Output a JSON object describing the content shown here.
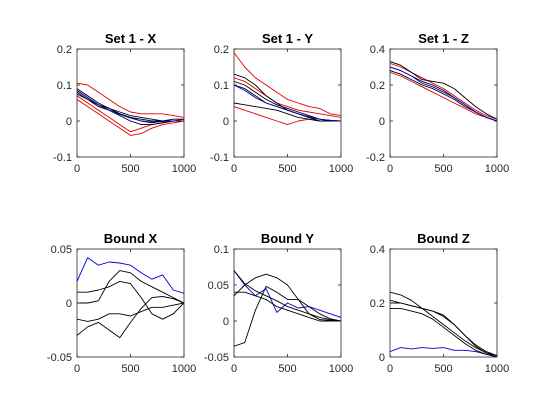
{
  "colors": {
    "black": "#000000",
    "red": "#e00000",
    "blue": "#0000e0",
    "axis": "#262626"
  },
  "chart_data": [
    {
      "type": "line",
      "title": "Set 1 - X",
      "xlim": [
        0,
        1000
      ],
      "ylim": [
        -0.1,
        0.2
      ],
      "xticks": [
        0,
        500,
        1000
      ],
      "yticks": [
        -0.1,
        0,
        0.1,
        0.2
      ],
      "xtick_labels": [
        "0",
        "500",
        "1000"
      ],
      "ytick_labels": [
        "-0.1",
        "0",
        "0.1",
        "0.2"
      ],
      "x": [
        0,
        100,
        200,
        300,
        400,
        500,
        600,
        700,
        800,
        900,
        1000
      ],
      "series": [
        {
          "color": "red",
          "values": [
            0.105,
            0.1,
            0.08,
            0.06,
            0.04,
            0.025,
            0.02,
            0.02,
            0.02,
            0.015,
            0.01
          ]
        },
        {
          "color": "red",
          "values": [
            0.06,
            0.04,
            0.02,
            0.0,
            -0.02,
            -0.04,
            -0.035,
            -0.02,
            -0.01,
            -0.005,
            0.0
          ]
        },
        {
          "color": "red",
          "values": [
            0.07,
            0.05,
            0.03,
            0.01,
            -0.01,
            -0.03,
            -0.02,
            -0.01,
            -0.005,
            0.0,
            0.005
          ]
        },
        {
          "color": "black",
          "values": [
            0.09,
            0.07,
            0.05,
            0.035,
            0.02,
            0.01,
            0.0,
            -0.005,
            0.0,
            0.005,
            0.005
          ]
        },
        {
          "color": "black",
          "values": [
            0.085,
            0.065,
            0.045,
            0.03,
            0.015,
            0.0,
            -0.01,
            -0.01,
            -0.005,
            0.0,
            0.0
          ]
        },
        {
          "color": "black",
          "values": [
            0.08,
            0.06,
            0.04,
            0.03,
            0.02,
            0.01,
            0.005,
            0.0,
            0.0,
            0.0,
            0.0
          ]
        },
        {
          "color": "black",
          "values": [
            0.075,
            0.06,
            0.045,
            0.035,
            0.025,
            0.015,
            0.01,
            0.005,
            0.0,
            0.0,
            0.0
          ]
        },
        {
          "color": "blue",
          "values": [
            0.085,
            0.065,
            0.045,
            0.03,
            0.018,
            0.008,
            0.0,
            -0.003,
            -0.002,
            0.0,
            0.0
          ]
        }
      ]
    },
    {
      "type": "line",
      "title": "Set 1 - Y",
      "xlim": [
        0,
        1000
      ],
      "ylim": [
        -0.1,
        0.2
      ],
      "xticks": [
        0,
        500,
        1000
      ],
      "yticks": [
        -0.1,
        0,
        0.1,
        0.2
      ],
      "xtick_labels": [
        "0",
        "500",
        "1000"
      ],
      "ytick_labels": [
        "-0.1",
        "0",
        "0.1",
        "0.2"
      ],
      "x": [
        0,
        100,
        200,
        300,
        400,
        500,
        600,
        700,
        800,
        900,
        1000
      ],
      "series": [
        {
          "color": "red",
          "values": [
            0.19,
            0.15,
            0.12,
            0.1,
            0.08,
            0.06,
            0.05,
            0.04,
            0.035,
            0.02,
            0.015
          ]
        },
        {
          "color": "red",
          "values": [
            0.12,
            0.11,
            0.09,
            0.07,
            0.05,
            0.04,
            0.03,
            0.025,
            0.02,
            0.015,
            0.01
          ]
        },
        {
          "color": "red",
          "values": [
            0.04,
            0.03,
            0.02,
            0.01,
            0.0,
            -0.01,
            0.0,
            0.005,
            0.0,
            0.0,
            0.0
          ]
        },
        {
          "color": "black",
          "values": [
            0.13,
            0.12,
            0.1,
            0.07,
            0.05,
            0.03,
            0.02,
            0.01,
            0.005,
            0.0,
            0.0
          ]
        },
        {
          "color": "black",
          "values": [
            0.1,
            0.09,
            0.07,
            0.05,
            0.04,
            0.03,
            0.02,
            0.01,
            0.0,
            0.0,
            0.0
          ]
        },
        {
          "color": "black",
          "values": [
            0.05,
            0.045,
            0.04,
            0.035,
            0.03,
            0.02,
            0.01,
            0.005,
            0.0,
            0.0,
            0.0
          ]
        },
        {
          "color": "black",
          "values": [
            0.11,
            0.1,
            0.08,
            0.06,
            0.045,
            0.035,
            0.025,
            0.015,
            0.005,
            0.002,
            0.0
          ]
        },
        {
          "color": "blue",
          "values": [
            0.1,
            0.085,
            0.065,
            0.05,
            0.04,
            0.03,
            0.02,
            0.012,
            0.005,
            0.002,
            0.0
          ]
        }
      ]
    },
    {
      "type": "line",
      "title": "Set 1 - Z",
      "xlim": [
        0,
        1000
      ],
      "ylim": [
        -0.2,
        0.4
      ],
      "xticks": [
        0,
        500,
        1000
      ],
      "yticks": [
        -0.2,
        0,
        0.2,
        0.4
      ],
      "xtick_labels": [
        "0",
        "500",
        "1000"
      ],
      "ytick_labels": [
        "-0.2",
        "0",
        "0.2",
        "0.4"
      ],
      "x": [
        0,
        100,
        200,
        300,
        400,
        500,
        600,
        700,
        800,
        900,
        1000
      ],
      "series": [
        {
          "color": "red",
          "values": [
            0.32,
            0.3,
            0.27,
            0.24,
            0.21,
            0.18,
            0.14,
            0.1,
            0.06,
            0.03,
            0.01
          ]
        },
        {
          "color": "red",
          "values": [
            0.27,
            0.25,
            0.22,
            0.19,
            0.16,
            0.13,
            0.1,
            0.07,
            0.04,
            0.02,
            0.0
          ]
        },
        {
          "color": "black",
          "values": [
            0.33,
            0.31,
            0.27,
            0.23,
            0.22,
            0.21,
            0.18,
            0.13,
            0.08,
            0.04,
            0.01
          ]
        },
        {
          "color": "black",
          "values": [
            0.3,
            0.28,
            0.25,
            0.22,
            0.2,
            0.17,
            0.13,
            0.09,
            0.05,
            0.02,
            0.0
          ]
        },
        {
          "color": "black",
          "values": [
            0.28,
            0.26,
            0.23,
            0.2,
            0.18,
            0.15,
            0.12,
            0.08,
            0.05,
            0.02,
            0.0
          ]
        },
        {
          "color": "blue",
          "values": [
            0.3,
            0.28,
            0.25,
            0.21,
            0.19,
            0.16,
            0.13,
            0.09,
            0.05,
            0.02,
            0.0
          ]
        }
      ]
    },
    {
      "type": "line",
      "title": "Bound X",
      "xlim": [
        0,
        1000
      ],
      "ylim": [
        -0.05,
        0.05
      ],
      "xticks": [
        0,
        500,
        1000
      ],
      "yticks": [
        -0.05,
        0,
        0.05
      ],
      "xtick_labels": [
        "0",
        "500",
        "1000"
      ],
      "ytick_labels": [
        "-0.05",
        "0",
        "0.05"
      ],
      "x": [
        0,
        100,
        200,
        300,
        400,
        500,
        600,
        700,
        800,
        900,
        1000
      ],
      "series": [
        {
          "color": "blue",
          "values": [
            0.02,
            0.042,
            0.035,
            0.038,
            0.037,
            0.035,
            0.028,
            0.022,
            0.026,
            0.012,
            0.009
          ]
        },
        {
          "color": "black",
          "values": [
            0.0,
            0.0,
            0.002,
            0.02,
            0.03,
            0.028,
            0.02,
            0.015,
            0.01,
            0.005,
            0.0
          ]
        },
        {
          "color": "black",
          "values": [
            0.01,
            0.01,
            0.012,
            0.015,
            0.02,
            0.018,
            0.005,
            -0.01,
            -0.015,
            -0.01,
            0.0
          ]
        },
        {
          "color": "black",
          "values": [
            -0.015,
            -0.017,
            -0.015,
            -0.01,
            -0.01,
            -0.012,
            -0.008,
            -0.004,
            -0.004,
            -0.002,
            0.0
          ]
        },
        {
          "color": "black",
          "values": [
            -0.03,
            -0.022,
            -0.018,
            -0.025,
            -0.032,
            -0.018,
            -0.005,
            0.005,
            0.006,
            0.004,
            0.0
          ]
        }
      ]
    },
    {
      "type": "line",
      "title": "Bound Y",
      "xlim": [
        0,
        1000
      ],
      "ylim": [
        -0.05,
        0.1
      ],
      "xticks": [
        0,
        500,
        1000
      ],
      "yticks": [
        -0.05,
        0,
        0.05,
        0.1
      ],
      "xtick_labels": [
        "0",
        "500",
        "1000"
      ],
      "ytick_labels": [
        "-0.05",
        "0",
        "0.05",
        "0.1"
      ],
      "x": [
        0,
        100,
        200,
        300,
        400,
        500,
        600,
        700,
        800,
        900,
        1000
      ],
      "series": [
        {
          "color": "blue",
          "values": [
            0.07,
            0.05,
            0.035,
            0.045,
            0.012,
            0.025,
            0.018,
            0.02,
            0.015,
            0.01,
            0.005
          ]
        },
        {
          "color": "black",
          "values": [
            0.07,
            0.052,
            0.042,
            0.035,
            0.028,
            0.02,
            0.015,
            0.01,
            0.005,
            0.002,
            0.0
          ]
        },
        {
          "color": "black",
          "values": [
            0.035,
            0.05,
            0.06,
            0.065,
            0.06,
            0.05,
            0.03,
            0.01,
            0.002,
            0.001,
            0.0
          ]
        },
        {
          "color": "black",
          "values": [
            -0.035,
            -0.03,
            0.015,
            0.048,
            0.04,
            0.03,
            0.03,
            0.02,
            0.01,
            0.003,
            0.0
          ]
        },
        {
          "color": "black",
          "values": [
            0.04,
            0.04,
            0.035,
            0.03,
            0.02,
            0.015,
            0.01,
            0.005,
            0.0,
            0.0,
            0.0
          ]
        }
      ]
    },
    {
      "type": "line",
      "title": "Bound Z",
      "xlim": [
        0,
        1000
      ],
      "ylim": [
        0,
        0.4
      ],
      "xticks": [
        0,
        500,
        1000
      ],
      "yticks": [
        0,
        0.2,
        0.4
      ],
      "xtick_labels": [
        "0",
        "500",
        "1000"
      ],
      "ytick_labels": [
        "0",
        "0.2",
        "0.4"
      ],
      "x": [
        0,
        100,
        200,
        300,
        400,
        500,
        600,
        700,
        800,
        900,
        1000
      ],
      "series": [
        {
          "color": "blue",
          "values": [
            0.02,
            0.035,
            0.03,
            0.035,
            0.032,
            0.035,
            0.025,
            0.025,
            0.02,
            0.01,
            0.005
          ]
        },
        {
          "color": "black",
          "values": [
            0.24,
            0.23,
            0.21,
            0.18,
            0.15,
            0.12,
            0.09,
            0.06,
            0.035,
            0.015,
            0.005
          ]
        },
        {
          "color": "black",
          "values": [
            0.21,
            0.2,
            0.19,
            0.18,
            0.17,
            0.15,
            0.12,
            0.08,
            0.045,
            0.02,
            0.005
          ]
        },
        {
          "color": "black",
          "values": [
            0.2,
            0.2,
            0.19,
            0.18,
            0.17,
            0.155,
            0.12,
            0.08,
            0.04,
            0.015,
            0.005
          ]
        },
        {
          "color": "black",
          "values": [
            0.18,
            0.18,
            0.17,
            0.16,
            0.14,
            0.11,
            0.08,
            0.05,
            0.025,
            0.01,
            0.0
          ]
        }
      ]
    }
  ]
}
